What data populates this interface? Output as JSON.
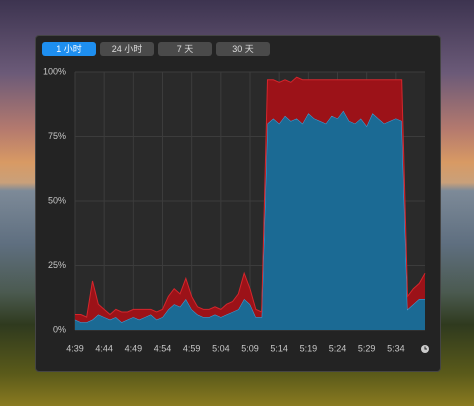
{
  "tabs": [
    {
      "label": "1 小时",
      "selected": true
    },
    {
      "label": "24 小时",
      "selected": false
    },
    {
      "label": "7 天",
      "selected": false
    },
    {
      "label": "30 天",
      "selected": false
    }
  ],
  "chart_data": {
    "type": "stacked-area",
    "categories": [
      "4:39",
      null,
      null,
      null,
      null,
      "4:44",
      null,
      null,
      null,
      null,
      "4:49",
      null,
      null,
      null,
      null,
      "4:54",
      null,
      null,
      null,
      null,
      "4:59",
      null,
      null,
      null,
      null,
      "5:04",
      null,
      null,
      null,
      null,
      "5:09",
      null,
      null,
      null,
      null,
      "5:14",
      null,
      null,
      null,
      null,
      "5:19",
      null,
      null,
      null,
      null,
      "5:24",
      null,
      null,
      null,
      null,
      "5:29",
      null,
      null,
      null,
      null,
      "5:34",
      null,
      null,
      null,
      null,
      null
    ],
    "series": [
      {
        "color": "#1b6a94",
        "line_color": "#42a4dc",
        "values": [
          4,
          3,
          3,
          4,
          6,
          5,
          4,
          5,
          3,
          4,
          5,
          4,
          5,
          6,
          4,
          5,
          8,
          10,
          9,
          12,
          8,
          6,
          5,
          5,
          6,
          5,
          6,
          7,
          8,
          12,
          10,
          5,
          5,
          80,
          82,
          80,
          83,
          81,
          82,
          80,
          84,
          82,
          81,
          80,
          83,
          82,
          85,
          81,
          80,
          82,
          79,
          84,
          82,
          80,
          81,
          82,
          81,
          8,
          10,
          12,
          12
        ]
      },
      {
        "color": "#9c1218",
        "line_color": "#d4262c",
        "values": [
          2,
          3,
          2,
          15,
          4,
          3,
          2,
          3,
          4,
          3,
          3,
          4,
          3,
          2,
          3,
          3,
          5,
          6,
          5,
          8,
          5,
          3,
          3,
          3,
          3,
          3,
          4,
          4,
          6,
          10,
          6,
          3,
          2,
          17,
          15,
          16,
          14,
          15,
          16,
          17,
          13,
          15,
          16,
          17,
          14,
          15,
          12,
          16,
          17,
          15,
          18,
          13,
          15,
          17,
          16,
          15,
          16,
          5,
          6,
          6,
          10
        ]
      }
    ],
    "ylim": [
      0,
      100
    ],
    "yticks": [
      {
        "value": 0,
        "label": "0%"
      },
      {
        "value": 25,
        "label": "25%"
      },
      {
        "value": 50,
        "label": "50%"
      },
      {
        "value": 75,
        "label": "75%"
      },
      {
        "value": 100,
        "label": "100%"
      }
    ],
    "grid": true
  }
}
